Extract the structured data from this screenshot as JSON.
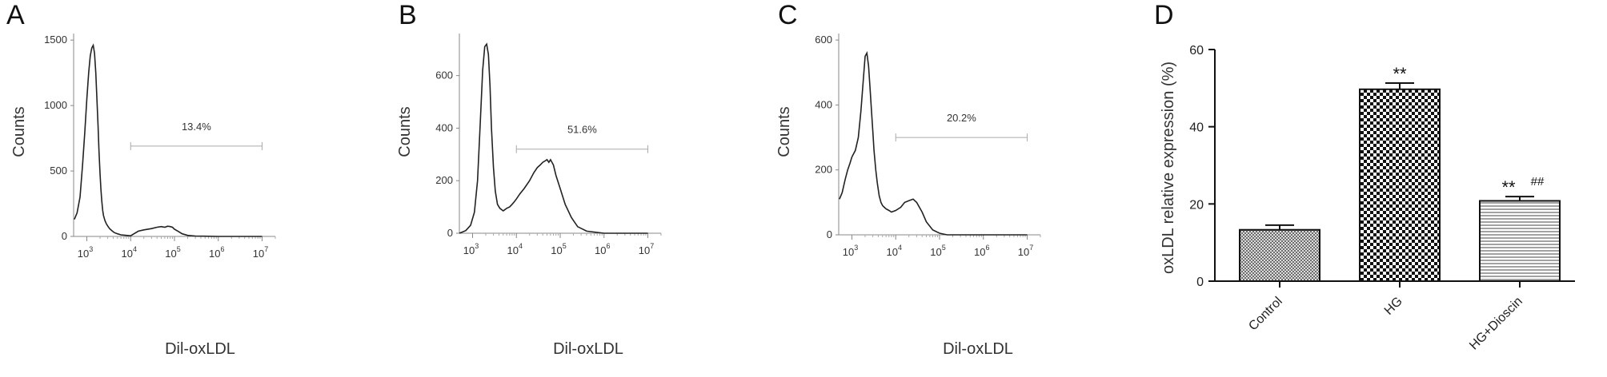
{
  "chart_data": [
    {
      "panel": "A",
      "type": "line",
      "xlabel": "Dil-oxLDL",
      "ylabel": "Counts",
      "x_scale": "log",
      "xlim": [
        500,
        20000000
      ],
      "ylim": [
        0,
        1550
      ],
      "y_ticks": [
        0,
        500,
        1000,
        1500
      ],
      "x_ticks": [
        {
          "base": "10",
          "exp": "3",
          "value": 1000
        },
        {
          "base": "10",
          "exp": "4",
          "value": 10000
        },
        {
          "base": "10",
          "exp": "5",
          "value": 100000
        },
        {
          "base": "10",
          "exp": "6",
          "value": 1000000
        },
        {
          "base": "10",
          "exp": "7",
          "value": 10000000
        }
      ],
      "gate": {
        "label": "13.4%",
        "x_start": 10000,
        "x_end": 10000000,
        "y": 690
      },
      "series": [
        {
          "x": [
            520,
            600,
            700,
            800,
            900,
            1000,
            1100,
            1200,
            1300,
            1400,
            1500,
            1600,
            1700,
            1800,
            1900,
            2000,
            2100,
            2200,
            2300,
            2400,
            2600,
            2800,
            3000,
            3300,
            3700,
            4200,
            5000,
            6000,
            8000,
            10000,
            15000,
            20000,
            30000,
            40000,
            50000,
            60000,
            70000,
            80000,
            90000,
            100000,
            120000,
            150000,
            200000,
            300000,
            1000000,
            10000000
          ],
          "y": [
            130,
            180,
            300,
            550,
            800,
            1050,
            1250,
            1380,
            1440,
            1460,
            1400,
            1250,
            1050,
            850,
            650,
            480,
            360,
            270,
            200,
            160,
            120,
            95,
            80,
            60,
            45,
            30,
            20,
            12,
            8,
            5,
            40,
            50,
            60,
            70,
            75,
            70,
            78,
            75,
            70,
            55,
            40,
            20,
            8,
            3,
            0,
            0
          ]
        }
      ]
    },
    {
      "panel": "B",
      "type": "line",
      "xlabel": "Dil-oxLDL",
      "ylabel": "Counts",
      "x_scale": "log",
      "xlim": [
        500,
        20000000
      ],
      "ylim": [
        0,
        760
      ],
      "y_ticks": [
        0,
        200,
        400,
        600
      ],
      "x_ticks": [
        {
          "base": "10",
          "exp": "3",
          "value": 1000
        },
        {
          "base": "10",
          "exp": "4",
          "value": 10000
        },
        {
          "base": "10",
          "exp": "5",
          "value": 100000
        },
        {
          "base": "10",
          "exp": "6",
          "value": 1000000
        },
        {
          "base": "10",
          "exp": "7",
          "value": 10000000
        }
      ],
      "gate": {
        "label": "51.6%",
        "x_start": 10000,
        "x_end": 10000000,
        "y": 320
      },
      "series": [
        {
          "x": [
            500,
            700,
            900,
            1100,
            1300,
            1500,
            1700,
            1900,
            2100,
            2300,
            2500,
            2700,
            3000,
            3300,
            3700,
            4200,
            5000,
            6000,
            7000,
            8000,
            9000,
            10000,
            12000,
            15000,
            20000,
            25000,
            30000,
            35000,
            40000,
            45000,
            50000,
            55000,
            60000,
            70000,
            80000,
            100000,
            130000,
            180000,
            250000,
            400000,
            1000000,
            10000000
          ],
          "y": [
            0,
            10,
            30,
            80,
            200,
            420,
            620,
            710,
            720,
            680,
            560,
            400,
            250,
            160,
            110,
            95,
            85,
            95,
            100,
            110,
            120,
            130,
            150,
            170,
            200,
            230,
            250,
            260,
            270,
            275,
            280,
            270,
            280,
            260,
            220,
            170,
            110,
            60,
            25,
            8,
            0,
            0
          ]
        }
      ]
    },
    {
      "panel": "C",
      "type": "line",
      "xlabel": "Dil-oxLDL",
      "ylabel": "Counts",
      "x_scale": "log",
      "xlim": [
        500,
        20000000
      ],
      "ylim": [
        0,
        620
      ],
      "y_ticks": [
        0,
        200,
        400,
        600
      ],
      "x_ticks": [
        {
          "base": "10",
          "exp": "3",
          "value": 1000
        },
        {
          "base": "10",
          "exp": "4",
          "value": 10000
        },
        {
          "base": "10",
          "exp": "5",
          "value": 100000
        },
        {
          "base": "10",
          "exp": "6",
          "value": 1000000
        },
        {
          "base": "10",
          "exp": "7",
          "value": 10000000
        }
      ],
      "gate": {
        "label": "20.2%",
        "x_start": 10000,
        "x_end": 10000000,
        "y": 300
      },
      "series": [
        {
          "x": [
            520,
            600,
            700,
            800,
            900,
            1000,
            1200,
            1400,
            1600,
            1800,
            2000,
            2200,
            2400,
            2600,
            2800,
            3000,
            3200,
            3500,
            3800,
            4200,
            4600,
            5000,
            5500,
            6000,
            7000,
            8000,
            10000,
            13000,
            16000,
            20000,
            25000,
            30000,
            40000,
            50000,
            70000,
            100000,
            150000,
            300000,
            1000000,
            10000000
          ],
          "y": [
            110,
            130,
            170,
            200,
            220,
            240,
            260,
            300,
            380,
            470,
            550,
            560,
            520,
            450,
            380,
            320,
            260,
            200,
            160,
            120,
            100,
            90,
            85,
            80,
            75,
            70,
            75,
            85,
            100,
            105,
            110,
            100,
            70,
            40,
            15,
            5,
            0,
            0,
            0,
            0
          ]
        }
      ]
    },
    {
      "panel": "D",
      "type": "bar",
      "ylabel": "oxLDL relative expression (%)",
      "ylim": [
        0,
        60
      ],
      "y_ticks": [
        0,
        20,
        40,
        60
      ],
      "categories": [
        "Control",
        "HG",
        "HG+Dioscin"
      ],
      "values": [
        13.3,
        49.7,
        20.8
      ],
      "errors": [
        1.2,
        1.6,
        1.1
      ],
      "patterns": [
        "crosshatch-fine",
        "checker",
        "horizontal-lines"
      ],
      "annotations": [
        {
          "category": "HG",
          "text": "**"
        },
        {
          "category": "HG+Dioscin",
          "text": "**",
          "extra": "##"
        }
      ]
    }
  ]
}
